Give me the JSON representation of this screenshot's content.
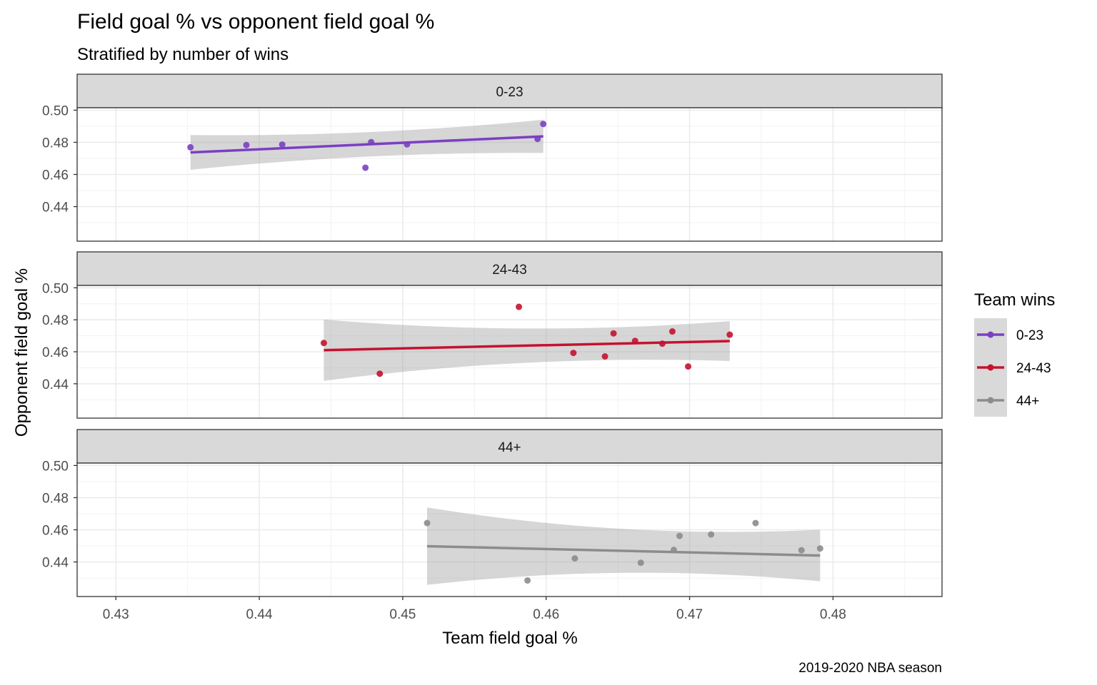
{
  "chart_data": {
    "type": "scatter",
    "title": "Field goal % vs opponent field goal %",
    "subtitle": "Stratified by number of wins",
    "xlabel": "Team field goal %",
    "ylabel": "Opponent field goal %",
    "caption": "2019-2020 NBA season",
    "xlim": [
      0.4273,
      0.4876
    ],
    "ylim": [
      0.4185,
      0.5015
    ],
    "x_ticks": [
      "0.43",
      "0.44",
      "0.45",
      "0.46",
      "0.47",
      "0.48"
    ],
    "y_ticks": [
      "0.44",
      "0.46",
      "0.48",
      "0.50"
    ],
    "grid": true,
    "legend": {
      "title": "Team wins",
      "position": "right",
      "items": [
        {
          "label": "0-23",
          "color": "#7b3fc4"
        },
        {
          "label": "24-43",
          "color": "#c41230"
        },
        {
          "label": "44+",
          "color": "#8c8c8c"
        }
      ]
    },
    "panels": [
      {
        "strip": "0-23",
        "color": "#7b3fc4",
        "points": [
          {
            "x": 0.4352,
            "y": 0.4769
          },
          {
            "x": 0.4391,
            "y": 0.4783
          },
          {
            "x": 0.4416,
            "y": 0.4786
          },
          {
            "x": 0.4474,
            "y": 0.4642
          },
          {
            "x": 0.4478,
            "y": 0.4801
          },
          {
            "x": 0.4503,
            "y": 0.4787
          },
          {
            "x": 0.4594,
            "y": 0.4821
          },
          {
            "x": 0.4598,
            "y": 0.4914
          }
        ],
        "fit": {
          "x0": 0.4352,
          "y0": 0.4737,
          "x1": 0.4598,
          "y1": 0.4837
        },
        "band": {
          "lower": [
            0.4628,
            0.4733
          ],
          "upper": [
            0.4844,
            0.494
          ]
        }
      },
      {
        "strip": "24-43",
        "color": "#c41230",
        "points": [
          {
            "x": 0.4445,
            "y": 0.4655
          },
          {
            "x": 0.4484,
            "y": 0.4463
          },
          {
            "x": 0.4581,
            "y": 0.4881
          },
          {
            "x": 0.4619,
            "y": 0.4593
          },
          {
            "x": 0.4641,
            "y": 0.4571
          },
          {
            "x": 0.4647,
            "y": 0.4715
          },
          {
            "x": 0.4662,
            "y": 0.4668
          },
          {
            "x": 0.4681,
            "y": 0.4651
          },
          {
            "x": 0.4688,
            "y": 0.4727
          },
          {
            "x": 0.4699,
            "y": 0.4508
          },
          {
            "x": 0.4728,
            "y": 0.4707
          }
        ],
        "fit": {
          "x0": 0.4445,
          "y0": 0.461,
          "x1": 0.4728,
          "y1": 0.4667
        },
        "band": {
          "lower": [
            0.4418,
            0.4542
          ],
          "upper": [
            0.4801,
            0.4791
          ]
        }
      },
      {
        "strip": "44+",
        "color": "#8c8c8c",
        "points": [
          {
            "x": 0.4517,
            "y": 0.4642
          },
          {
            "x": 0.4587,
            "y": 0.4285
          },
          {
            "x": 0.462,
            "y": 0.4422
          },
          {
            "x": 0.4666,
            "y": 0.4395
          },
          {
            "x": 0.4689,
            "y": 0.4475
          },
          {
            "x": 0.4693,
            "y": 0.4562
          },
          {
            "x": 0.4715,
            "y": 0.4571
          },
          {
            "x": 0.4746,
            "y": 0.4642
          },
          {
            "x": 0.4778,
            "y": 0.4473
          },
          {
            "x": 0.4791,
            "y": 0.4484
          }
        ],
        "fit": {
          "x0": 0.4517,
          "y0": 0.4498,
          "x1": 0.4791,
          "y1": 0.444
        },
        "band": {
          "lower": [
            0.4257,
            0.4284
          ],
          "upper": [
            0.4739,
            0.4605
          ]
        }
      }
    ]
  }
}
